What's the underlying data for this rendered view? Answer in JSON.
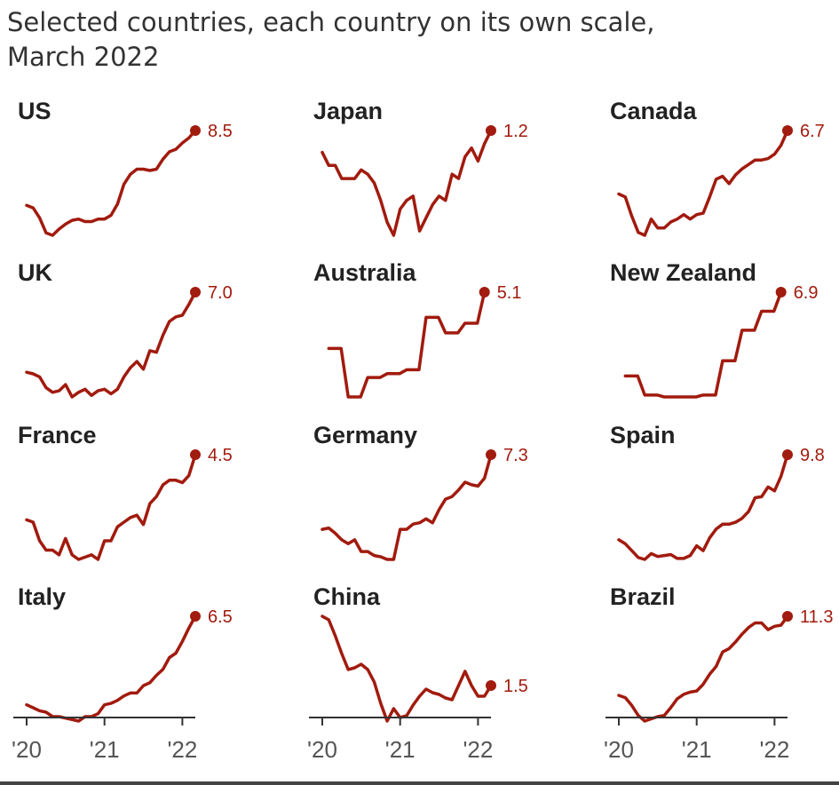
{
  "title_lines": [
    "Selected countries, each country on its own scale,",
    "March 2022"
  ],
  "colors": {
    "line": "#a11b0e",
    "text": "#222222",
    "axis": "#333333",
    "value": "#a11b0e"
  },
  "chart_data": [
    {
      "type": "line",
      "title": "US",
      "end_label": "8.5",
      "x_ticks": [
        "'20",
        "'21",
        "'22"
      ],
      "x": [
        "2020-01",
        "2020-02",
        "2020-03",
        "2020-04",
        "2020-05",
        "2020-06",
        "2020-07",
        "2020-08",
        "2020-09",
        "2020-10",
        "2020-11",
        "2020-12",
        "2021-01",
        "2021-02",
        "2021-03",
        "2021-04",
        "2021-05",
        "2021-06",
        "2021-07",
        "2021-08",
        "2021-09",
        "2021-10",
        "2021-11",
        "2021-12",
        "2022-01",
        "2022-02",
        "2022-03"
      ],
      "values": [
        2.5,
        2.3,
        1.5,
        0.3,
        0.1,
        0.6,
        1.0,
        1.3,
        1.4,
        1.2,
        1.2,
        1.4,
        1.4,
        1.7,
        2.6,
        4.2,
        5.0,
        5.4,
        5.4,
        5.3,
        5.4,
        6.2,
        6.8,
        7.0,
        7.5,
        7.9,
        8.5
      ]
    },
    {
      "type": "line",
      "title": "Japan",
      "end_label": "1.2",
      "x_ticks": [
        "'20",
        "'21",
        "'22"
      ],
      "x": [
        "2020-01",
        "2020-02",
        "2020-03",
        "2020-04",
        "2020-05",
        "2020-06",
        "2020-07",
        "2020-08",
        "2020-09",
        "2020-10",
        "2020-11",
        "2020-12",
        "2021-01",
        "2021-02",
        "2021-03",
        "2021-04",
        "2021-05",
        "2021-06",
        "2021-07",
        "2021-08",
        "2021-09",
        "2021-10",
        "2021-11",
        "2021-12",
        "2022-01",
        "2022-02",
        "2022-03"
      ],
      "values": [
        0.7,
        0.4,
        0.4,
        0.1,
        0.1,
        0.1,
        0.3,
        0.2,
        0.0,
        -0.4,
        -0.9,
        -1.2,
        -0.6,
        -0.4,
        -0.3,
        -1.1,
        -0.8,
        -0.5,
        -0.3,
        -0.4,
        0.2,
        0.1,
        0.6,
        0.8,
        0.5,
        0.9,
        1.2
      ]
    },
    {
      "type": "line",
      "title": "Canada",
      "end_label": "6.7",
      "x_ticks": [
        "'20",
        "'21",
        "'22"
      ],
      "x": [
        "2020-01",
        "2020-02",
        "2020-03",
        "2020-04",
        "2020-05",
        "2020-06",
        "2020-07",
        "2020-08",
        "2020-09",
        "2020-10",
        "2020-11",
        "2020-12",
        "2021-01",
        "2021-02",
        "2021-03",
        "2021-04",
        "2021-05",
        "2021-06",
        "2021-07",
        "2021-08",
        "2021-09",
        "2021-10",
        "2021-11",
        "2021-12",
        "2022-01",
        "2022-02",
        "2022-03"
      ],
      "values": [
        2.4,
        2.2,
        0.9,
        -0.2,
        -0.4,
        0.7,
        0.1,
        0.1,
        0.5,
        0.7,
        1.0,
        0.7,
        1.0,
        1.1,
        2.2,
        3.4,
        3.6,
        3.1,
        3.7,
        4.1,
        4.4,
        4.7,
        4.7,
        4.8,
        5.1,
        5.7,
        6.7
      ]
    },
    {
      "type": "line",
      "title": "UK",
      "end_label": "7.0",
      "x_ticks": [
        "'20",
        "'21",
        "'22"
      ],
      "x": [
        "2020-01",
        "2020-02",
        "2020-03",
        "2020-04",
        "2020-05",
        "2020-06",
        "2020-07",
        "2020-08",
        "2020-09",
        "2020-10",
        "2020-11",
        "2020-12",
        "2021-01",
        "2021-02",
        "2021-03",
        "2021-04",
        "2021-05",
        "2021-06",
        "2021-07",
        "2021-08",
        "2021-09",
        "2021-10",
        "2021-11",
        "2021-12",
        "2022-01",
        "2022-02",
        "2022-03"
      ],
      "values": [
        1.8,
        1.7,
        1.5,
        0.8,
        0.5,
        0.6,
        1.0,
        0.2,
        0.5,
        0.7,
        0.3,
        0.6,
        0.7,
        0.4,
        0.7,
        1.5,
        2.1,
        2.5,
        2.0,
        3.2,
        3.1,
        4.2,
        5.1,
        5.4,
        5.5,
        6.2,
        7.0
      ]
    },
    {
      "type": "line",
      "title": "Australia",
      "end_label": "5.1",
      "x_ticks": [
        "'20",
        "'21",
        "'22"
      ],
      "x": [
        "2020-Q1",
        "2020-Q2",
        "2020-Q3",
        "2020-Q4",
        "2021-Q1",
        "2021-Q2",
        "2021-Q3",
        "2021-Q4",
        "2022-Q1"
      ],
      "values": [
        2.2,
        -0.3,
        0.7,
        0.9,
        1.1,
        3.8,
        3.0,
        3.5,
        5.1
      ]
    },
    {
      "type": "line",
      "title": "New Zealand",
      "end_label": "6.9",
      "x_ticks": [
        "'20",
        "'21",
        "'22"
      ],
      "x": [
        "2020-Q1",
        "2020-Q2",
        "2020-Q3",
        "2020-Q4",
        "2021-Q1",
        "2021-Q2",
        "2021-Q3",
        "2021-Q4",
        "2022-Q1"
      ],
      "values": [
        2.5,
        1.5,
        1.4,
        1.4,
        1.5,
        3.3,
        4.9,
        5.9,
        6.9
      ]
    },
    {
      "type": "line",
      "title": "France",
      "end_label": "4.5",
      "x_ticks": [
        "'20",
        "'21",
        "'22"
      ],
      "x": [
        "2020-01",
        "2020-02",
        "2020-03",
        "2020-04",
        "2020-05",
        "2020-06",
        "2020-07",
        "2020-08",
        "2020-09",
        "2020-10",
        "2020-11",
        "2020-12",
        "2021-01",
        "2021-02",
        "2021-03",
        "2021-04",
        "2021-05",
        "2021-06",
        "2021-07",
        "2021-08",
        "2021-09",
        "2021-10",
        "2021-11",
        "2021-12",
        "2022-01",
        "2022-02",
        "2022-03"
      ],
      "values": [
        1.7,
        1.6,
        0.8,
        0.4,
        0.4,
        0.2,
        0.9,
        0.2,
        0.0,
        0.1,
        0.2,
        0.0,
        0.8,
        0.8,
        1.4,
        1.6,
        1.8,
        1.9,
        1.5,
        2.4,
        2.7,
        3.2,
        3.4,
        3.4,
        3.3,
        3.6,
        4.5
      ]
    },
    {
      "type": "line",
      "title": "Germany",
      "end_label": "7.3",
      "x_ticks": [
        "'20",
        "'21",
        "'22"
      ],
      "x": [
        "2020-01",
        "2020-02",
        "2020-03",
        "2020-04",
        "2020-05",
        "2020-06",
        "2020-07",
        "2020-08",
        "2020-09",
        "2020-10",
        "2020-11",
        "2020-12",
        "2021-01",
        "2021-02",
        "2021-03",
        "2021-04",
        "2021-05",
        "2021-06",
        "2021-07",
        "2021-08",
        "2021-09",
        "2021-10",
        "2021-11",
        "2021-12",
        "2022-01",
        "2022-02",
        "2022-03"
      ],
      "values": [
        1.6,
        1.7,
        1.3,
        0.8,
        0.5,
        0.8,
        -0.1,
        -0.1,
        -0.4,
        -0.5,
        -0.7,
        -0.7,
        1.6,
        1.6,
        2.0,
        2.1,
        2.4,
        2.1,
        3.1,
        3.9,
        4.1,
        4.6,
        5.2,
        5.0,
        4.9,
        5.5,
        7.3
      ]
    },
    {
      "type": "line",
      "title": "Spain",
      "end_label": "9.8",
      "x_ticks": [
        "'20",
        "'21",
        "'22"
      ],
      "x": [
        "2020-01",
        "2020-02",
        "2020-03",
        "2020-04",
        "2020-05",
        "2020-06",
        "2020-07",
        "2020-08",
        "2020-09",
        "2020-10",
        "2020-11",
        "2020-12",
        "2021-01",
        "2021-02",
        "2021-03",
        "2021-04",
        "2021-05",
        "2021-06",
        "2021-07",
        "2021-08",
        "2021-09",
        "2021-10",
        "2021-11",
        "2021-12",
        "2022-01",
        "2022-02",
        "2022-03"
      ],
      "values": [
        1.1,
        0.7,
        0.0,
        -0.7,
        -0.9,
        -0.3,
        -0.6,
        -0.5,
        -0.4,
        -0.8,
        -0.8,
        -0.5,
        0.5,
        0.0,
        1.3,
        2.2,
        2.7,
        2.7,
        2.9,
        3.3,
        4.0,
        5.4,
        5.5,
        6.5,
        6.1,
        7.6,
        9.8
      ]
    },
    {
      "type": "line",
      "title": "Italy",
      "end_label": "6.5",
      "x_ticks": [
        "'20",
        "'21",
        "'22"
      ],
      "x": [
        "2020-01",
        "2020-02",
        "2020-03",
        "2020-04",
        "2020-05",
        "2020-06",
        "2020-07",
        "2020-08",
        "2020-09",
        "2020-10",
        "2020-11",
        "2020-12",
        "2021-01",
        "2021-02",
        "2021-03",
        "2021-04",
        "2021-05",
        "2021-06",
        "2021-07",
        "2021-08",
        "2021-09",
        "2021-10",
        "2021-11",
        "2021-12",
        "2022-01",
        "2022-02",
        "2022-03"
      ],
      "values": [
        0.5,
        0.3,
        0.1,
        0.0,
        -0.3,
        -0.3,
        -0.4,
        -0.5,
        -0.6,
        -0.3,
        -0.3,
        -0.1,
        0.5,
        0.6,
        0.8,
        1.1,
        1.3,
        1.3,
        1.8,
        2.0,
        2.5,
        2.9,
        3.7,
        4.0,
        4.8,
        5.7,
        6.5
      ]
    },
    {
      "type": "line",
      "title": "China",
      "end_label": "1.5",
      "x_ticks": [
        "'20",
        "'21",
        "'22"
      ],
      "x": [
        "2020-01",
        "2020-02",
        "2020-03",
        "2020-04",
        "2020-05",
        "2020-06",
        "2020-07",
        "2020-08",
        "2020-09",
        "2020-10",
        "2020-11",
        "2020-12",
        "2021-01",
        "2021-02",
        "2021-03",
        "2021-04",
        "2021-05",
        "2021-06",
        "2021-07",
        "2021-08",
        "2021-09",
        "2021-10",
        "2021-11",
        "2021-12",
        "2022-01",
        "2022-02",
        "2022-03"
      ],
      "values": [
        5.4,
        5.2,
        4.3,
        3.3,
        2.4,
        2.5,
        2.7,
        2.4,
        1.7,
        0.5,
        -0.5,
        0.2,
        -0.3,
        -0.2,
        0.4,
        0.9,
        1.3,
        1.1,
        1.0,
        0.8,
        0.7,
        1.5,
        2.3,
        1.5,
        0.9,
        0.9,
        1.5
      ]
    },
    {
      "type": "line",
      "title": "Brazil",
      "end_label": "11.3",
      "x_ticks": [
        "'20",
        "'21",
        "'22"
      ],
      "x": [
        "2020-01",
        "2020-02",
        "2020-03",
        "2020-04",
        "2020-05",
        "2020-06",
        "2020-07",
        "2020-08",
        "2020-09",
        "2020-10",
        "2020-11",
        "2020-12",
        "2021-01",
        "2021-02",
        "2021-03",
        "2021-04",
        "2021-05",
        "2021-06",
        "2021-07",
        "2021-08",
        "2021-09",
        "2021-10",
        "2021-11",
        "2021-12",
        "2022-01",
        "2022-02",
        "2022-03"
      ],
      "values": [
        4.2,
        4.0,
        3.3,
        2.4,
        1.9,
        2.1,
        2.3,
        2.4,
        3.1,
        3.9,
        4.3,
        4.5,
        4.6,
        5.2,
        6.1,
        6.8,
        8.1,
        8.4,
        9.0,
        9.7,
        10.3,
        10.7,
        10.7,
        10.1,
        10.4,
        10.5,
        11.3
      ]
    }
  ]
}
